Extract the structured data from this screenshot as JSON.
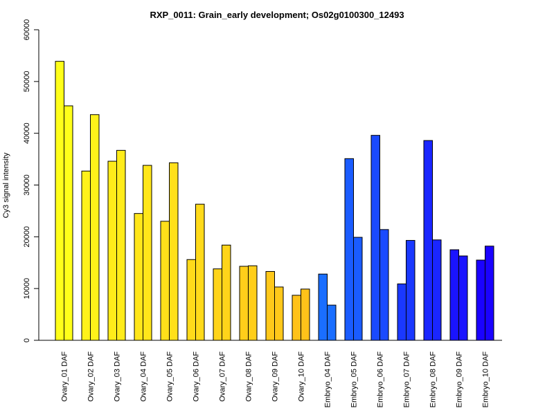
{
  "chart_data": {
    "type": "bar",
    "title": "RXP_0011: Grain_early development; Os02g0100300_12493",
    "xlabel": "",
    "ylabel": "Cy3 signal intensity",
    "ylim": [
      0,
      60000
    ],
    "yticks": [
      0,
      10000,
      20000,
      30000,
      40000,
      50000,
      60000
    ],
    "grid": false,
    "categories": [
      "Ovary_01 DAF",
      "Ovary_02 DAF",
      "Ovary_03 DAF",
      "Ovary_04 DAF",
      "Ovary_05 DAF",
      "Ovary_06 DAF",
      "Ovary_07 DAF",
      "Ovary_08 DAF",
      "Ovary_09 DAF",
      "Ovary_10 DAF",
      "Embryo_04 DAF",
      "Embryo_05 DAF",
      "Embryo_06 DAF",
      "Embryo_07 DAF",
      "Embryo_08 DAF",
      "Embryo_09 DAF",
      "Embryo_10 DAF"
    ],
    "series": [
      {
        "values": [
          53900,
          32700,
          34600,
          24500,
          23000,
          15600,
          13800,
          14300,
          13300,
          8700,
          12800,
          35100,
          39600,
          10900,
          38600,
          17500,
          15500
        ]
      },
      {
        "values": [
          45300,
          43600,
          36700,
          33800,
          34300,
          26300,
          18400,
          14400,
          10300,
          9900,
          6800,
          19900,
          21400,
          19300,
          19400,
          16300,
          18200
        ]
      }
    ],
    "colors": [
      "#ffff1a",
      "#fff21a",
      "#ffec1a",
      "#ffe61a",
      "#ffe01a",
      "#ffda1a",
      "#ffd41a",
      "#ffce1a",
      "#ffc81a",
      "#ffc21a",
      "#1a6eff",
      "#1a5cff",
      "#1a4aff",
      "#1a38ff",
      "#1a26ff",
      "#1a14ff",
      "#1a02ff"
    ]
  }
}
